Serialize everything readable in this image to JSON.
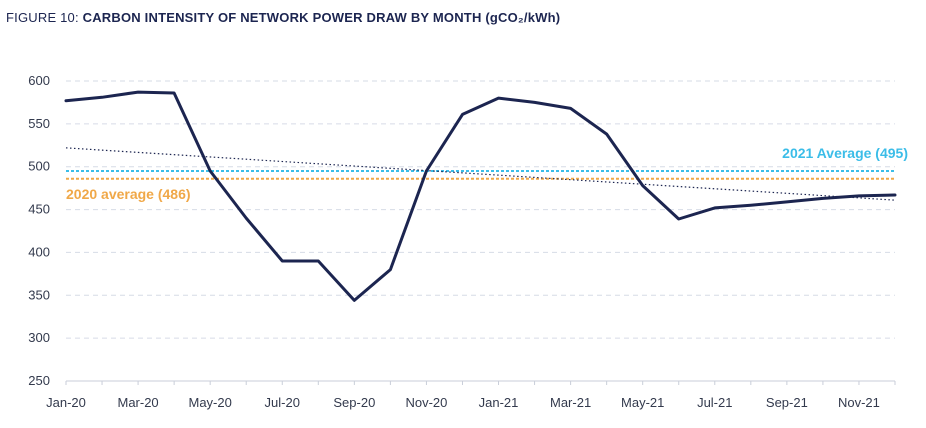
{
  "figure": {
    "prefix": "FIGURE 10: ",
    "title": "CARBON INTENSITY OF NETWORK POWER DRAW BY MONTH (gCO₂/kWh)"
  },
  "chart_data": {
    "type": "line",
    "title": "CARBON INTENSITY OF NETWORK POWER DRAW BY MONTH (gCO₂/kWh)",
    "x": [
      "Jan-20",
      "Feb-20",
      "Mar-20",
      "Apr-20",
      "May-20",
      "Jun-20",
      "Jul-20",
      "Aug-20",
      "Sep-20",
      "Oct-20",
      "Nov-20",
      "Dec-20",
      "Jan-21",
      "Feb-21",
      "Mar-21",
      "Apr-21",
      "May-21",
      "Jun-21",
      "Jul-21",
      "Aug-21",
      "Sep-21",
      "Oct-21",
      "Nov-21",
      "Dec-21"
    ],
    "x_tick_labels": [
      "Jan-20",
      "Mar-20",
      "May-20",
      "Jul-20",
      "Sep-20",
      "Nov-20",
      "Jan-21",
      "Mar-21",
      "May-21",
      "Jul-21",
      "Sep-21",
      "Nov-21"
    ],
    "y_ticks": [
      250,
      300,
      350,
      400,
      450,
      500,
      550,
      600
    ],
    "ylim": [
      250,
      600
    ],
    "grid": true,
    "series": [
      {
        "values": [
          577,
          581,
          587,
          586,
          495,
          440,
          390,
          390,
          344,
          380,
          495,
          561,
          580,
          575,
          568,
          538,
          478,
          439,
          452,
          455,
          459,
          463,
          466,
          467
        ],
        "color": "#1c2550"
      }
    ],
    "trendline": {
      "start": 522,
      "end": 461,
      "color": "#1c2550",
      "style": "dotted"
    },
    "reference_lines": [
      {
        "label": "2021 Average (495)",
        "value": 495,
        "color": "#3bbde8"
      },
      {
        "label": "2020 average (486)",
        "value": 486,
        "color": "#f0a848"
      }
    ]
  }
}
